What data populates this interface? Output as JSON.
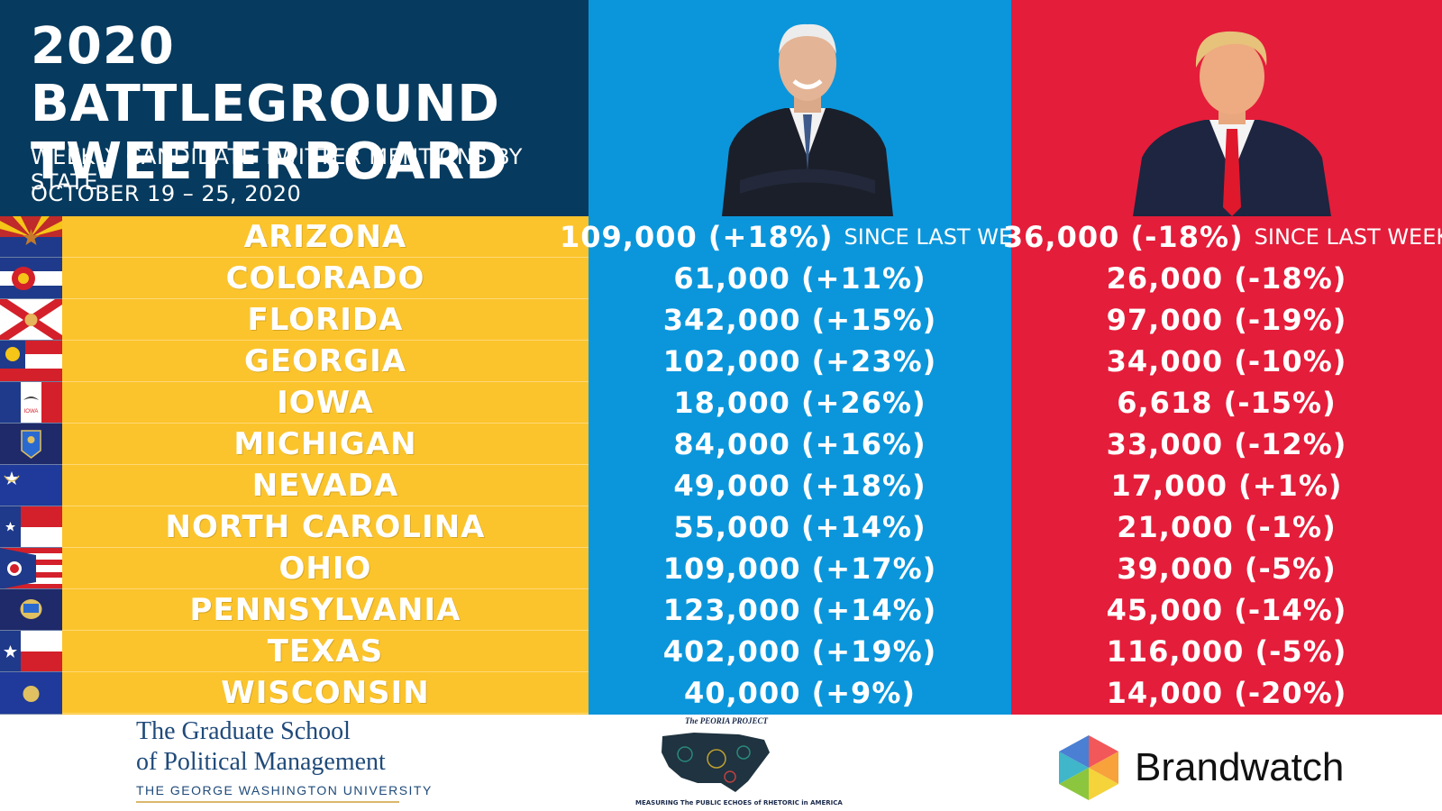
{
  "header": {
    "title_line1": "2020 BATTLEGROUND",
    "title_line2": "TWEETERBOARD",
    "subtitle": "WEEKLY CANDIDATE TWITTER MENTIONS BY STATE",
    "dates": "OCTOBER 19 – 25, 2020"
  },
  "colors": {
    "navy": "#063a5e",
    "gold": "#fcc42c",
    "blue": "#0b96db",
    "red": "#e41d3a"
  },
  "since_label": "SINCE LAST WEEK",
  "rows": [
    {
      "state": "ARIZONA",
      "flag_icon": "arizona-flag-icon",
      "biden": "109,000 (+18%)",
      "trump": "36,000 (-18%)"
    },
    {
      "state": "COLORADO",
      "flag_icon": "colorado-flag-icon",
      "biden": "61,000 (+11%)",
      "trump": "26,000 (-18%)"
    },
    {
      "state": "FLORIDA",
      "flag_icon": "florida-flag-icon",
      "biden": "342,000 (+15%)",
      "trump": "97,000 (-19%)"
    },
    {
      "state": "GEORGIA",
      "flag_icon": "georgia-flag-icon",
      "biden": "102,000 (+23%)",
      "trump": "34,000 (-10%)"
    },
    {
      "state": "IOWA",
      "flag_icon": "iowa-flag-icon",
      "biden": "18,000 (+26%)",
      "trump": "6,618 (-15%)"
    },
    {
      "state": "MICHIGAN",
      "flag_icon": "michigan-flag-icon",
      "biden": "84,000 (+16%)",
      "trump": "33,000 (-12%)"
    },
    {
      "state": "NEVADA",
      "flag_icon": "nevada-flag-icon",
      "biden": "49,000 (+18%)",
      "trump": "17,000 (+1%)"
    },
    {
      "state": "NORTH CAROLINA",
      "flag_icon": "north-carolina-flag-icon",
      "biden": "55,000 (+14%)",
      "trump": "21,000 (-1%)"
    },
    {
      "state": "OHIO",
      "flag_icon": "ohio-flag-icon",
      "biden": "109,000 (+17%)",
      "trump": "39,000 (-5%)"
    },
    {
      "state": "PENNSYLVANIA",
      "flag_icon": "pennsylvania-flag-icon",
      "biden": "123,000 (+14%)",
      "trump": "45,000 (-14%)"
    },
    {
      "state": "TEXAS",
      "flag_icon": "texas-flag-icon",
      "biden": "402,000 (+19%)",
      "trump": "116,000 (-5%)"
    },
    {
      "state": "WISCONSIN",
      "flag_icon": "wisconsin-flag-icon",
      "biden": "40,000 (+9%)",
      "trump": "14,000 (-20%)"
    }
  ],
  "footer": {
    "gsp_line1": "The Graduate School",
    "gsp_line2": "of Political Management",
    "gsp_line3": "THE GEORGE WASHINGTON UNIVERSITY",
    "peoria_title": "The PEORIA PROJECT",
    "peoria_tagline": "MEASURING The PUBLIC ECHOES of RHETORIC in AMERICA",
    "brandwatch": "Brandwatch"
  }
}
